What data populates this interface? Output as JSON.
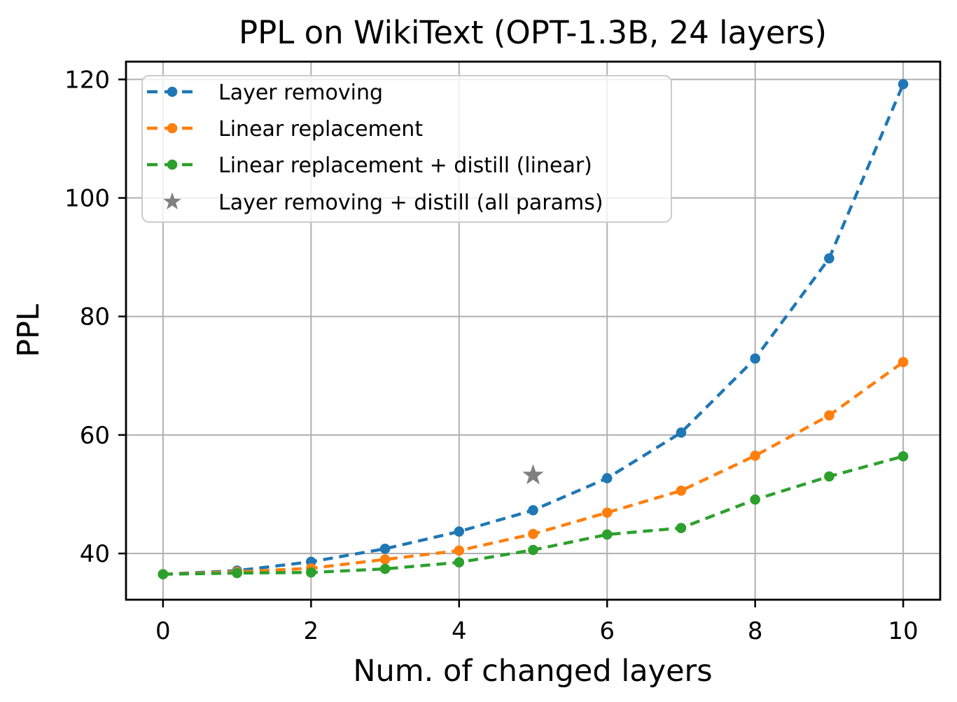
{
  "figure": {
    "background": "#ffffff"
  },
  "chart_data": {
    "type": "line",
    "title": "PPL on WikiText (OPT-1.3B, 24 layers)",
    "xlabel": "Num. of changed layers",
    "ylabel": "PPL",
    "x": [
      0,
      1,
      2,
      3,
      4,
      5,
      6,
      7,
      8,
      9,
      10
    ],
    "xticks": [
      0,
      2,
      4,
      6,
      8,
      10
    ],
    "yticks": [
      40,
      60,
      80,
      100,
      120
    ],
    "xlim": [
      -0.5,
      10.5
    ],
    "ylim": [
      32.2,
      123.0
    ],
    "grid": true,
    "legend_position": "upper-left",
    "series": [
      {
        "name": "Layer removing",
        "color": "#1f77b4",
        "linestyle": "dashed",
        "marker": "circle",
        "values": [
          36.5,
          37.1,
          38.6,
          40.8,
          43.7,
          47.3,
          52.7,
          60.4,
          72.9,
          89.8,
          119.2
        ]
      },
      {
        "name": "Linear replacement",
        "color": "#ff7f0e",
        "linestyle": "dashed",
        "marker": "circle",
        "values": [
          36.5,
          36.9,
          37.5,
          39.0,
          40.5,
          43.3,
          46.9,
          50.6,
          56.5,
          63.3,
          72.3
        ]
      },
      {
        "name": "Linear replacement + distill (linear)",
        "color": "#2ca02c",
        "linestyle": "dashed",
        "marker": "circle",
        "values": [
          36.5,
          36.7,
          36.8,
          37.4,
          38.5,
          40.6,
          43.2,
          44.3,
          49.1,
          53.0,
          56.4
        ]
      }
    ],
    "points": [
      {
        "name": "Layer removing + distill (all params)",
        "color": "#808080",
        "marker": "star",
        "x": 5,
        "y": 53.2
      }
    ]
  },
  "style_colors": {
    "grid": "#b0b0b0",
    "spine": "#000000",
    "legend_border": "#cccccc",
    "legend_background": "rgba(255,255,255,0.8)"
  }
}
